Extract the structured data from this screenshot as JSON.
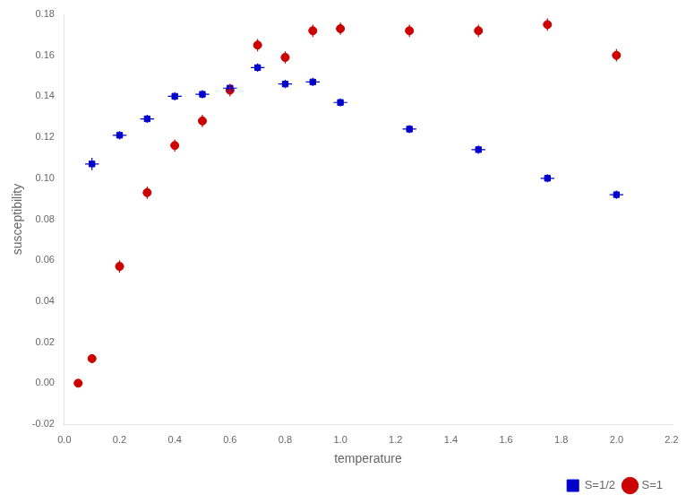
{
  "chart_data": {
    "type": "scatter",
    "xlabel": "temperature",
    "ylabel": "susceptibility",
    "xlim": [
      0,
      2.2
    ],
    "ylim": [
      -0.02,
      0.18
    ],
    "xticks": [
      {
        "value": 0,
        "label": "0.0"
      },
      0.2,
      0.4,
      0.6,
      0.8,
      {
        "value": 1.0,
        "label": "1.0"
      },
      1.2,
      1.4,
      1.6,
      1.8,
      {
        "value": 2.0,
        "label": "2.0"
      },
      2.2
    ],
    "yticks": [
      -0.02,
      {
        "value": 0,
        "label": "0.00"
      },
      0.02,
      0.04,
      0.06,
      0.08,
      {
        "value": 0.1,
        "label": "0.10"
      },
      0.12,
      0.14,
      0.16,
      0.18
    ],
    "grid": false,
    "legend": "lower right",
    "series": [
      {
        "name": "S=1/2",
        "color": "#0000cc",
        "marker": "square",
        "x": [
          0.1,
          0.2,
          0.3,
          0.4,
          0.5,
          0.6,
          0.7,
          0.8,
          0.9,
          1.0,
          1.25,
          1.5,
          1.75,
          2.0
        ],
        "values": [
          0.107,
          0.121,
          0.129,
          0.14,
          0.141,
          0.144,
          0.154,
          0.146,
          0.147,
          0.137,
          0.124,
          0.114,
          0.1,
          0.092
        ],
        "yerr": [
          0.003,
          0.002,
          0.002,
          0.002,
          0.002,
          0.002,
          0.002,
          0.002,
          0.002,
          0.002,
          0.002,
          0.002,
          0.002,
          0.002
        ],
        "xerr": [
          0.025,
          0.025,
          0.025,
          0.025,
          0.025,
          0.025,
          0.025,
          0.025,
          0.025,
          0.025,
          0.025,
          0.025,
          0.025,
          0.025
        ]
      },
      {
        "name": "S=1",
        "color": "#cc0000",
        "marker": "circle",
        "x": [
          0.05,
          0.1,
          0.2,
          0.3,
          0.4,
          0.5,
          0.6,
          0.7,
          0.8,
          0.9,
          1.0,
          1.25,
          1.5,
          1.75,
          2.0
        ],
        "values": [
          0.0,
          0.012,
          0.057,
          0.093,
          0.116,
          0.128,
          0.143,
          0.165,
          0.159,
          0.172,
          0.173,
          0.172,
          0.172,
          0.175,
          0.16
        ],
        "yerr": [
          0.001,
          0.002,
          0.003,
          0.003,
          0.003,
          0.003,
          0.003,
          0.003,
          0.003,
          0.003,
          0.003,
          0.003,
          0.003,
          0.003,
          0.003
        ],
        "xerr": [
          0.015,
          0.015,
          0.015,
          0.015,
          0.015,
          0.015,
          0.015,
          0.015,
          0.015,
          0.015,
          0.015,
          0.015,
          0.015,
          0.015,
          0.015
        ]
      }
    ]
  }
}
